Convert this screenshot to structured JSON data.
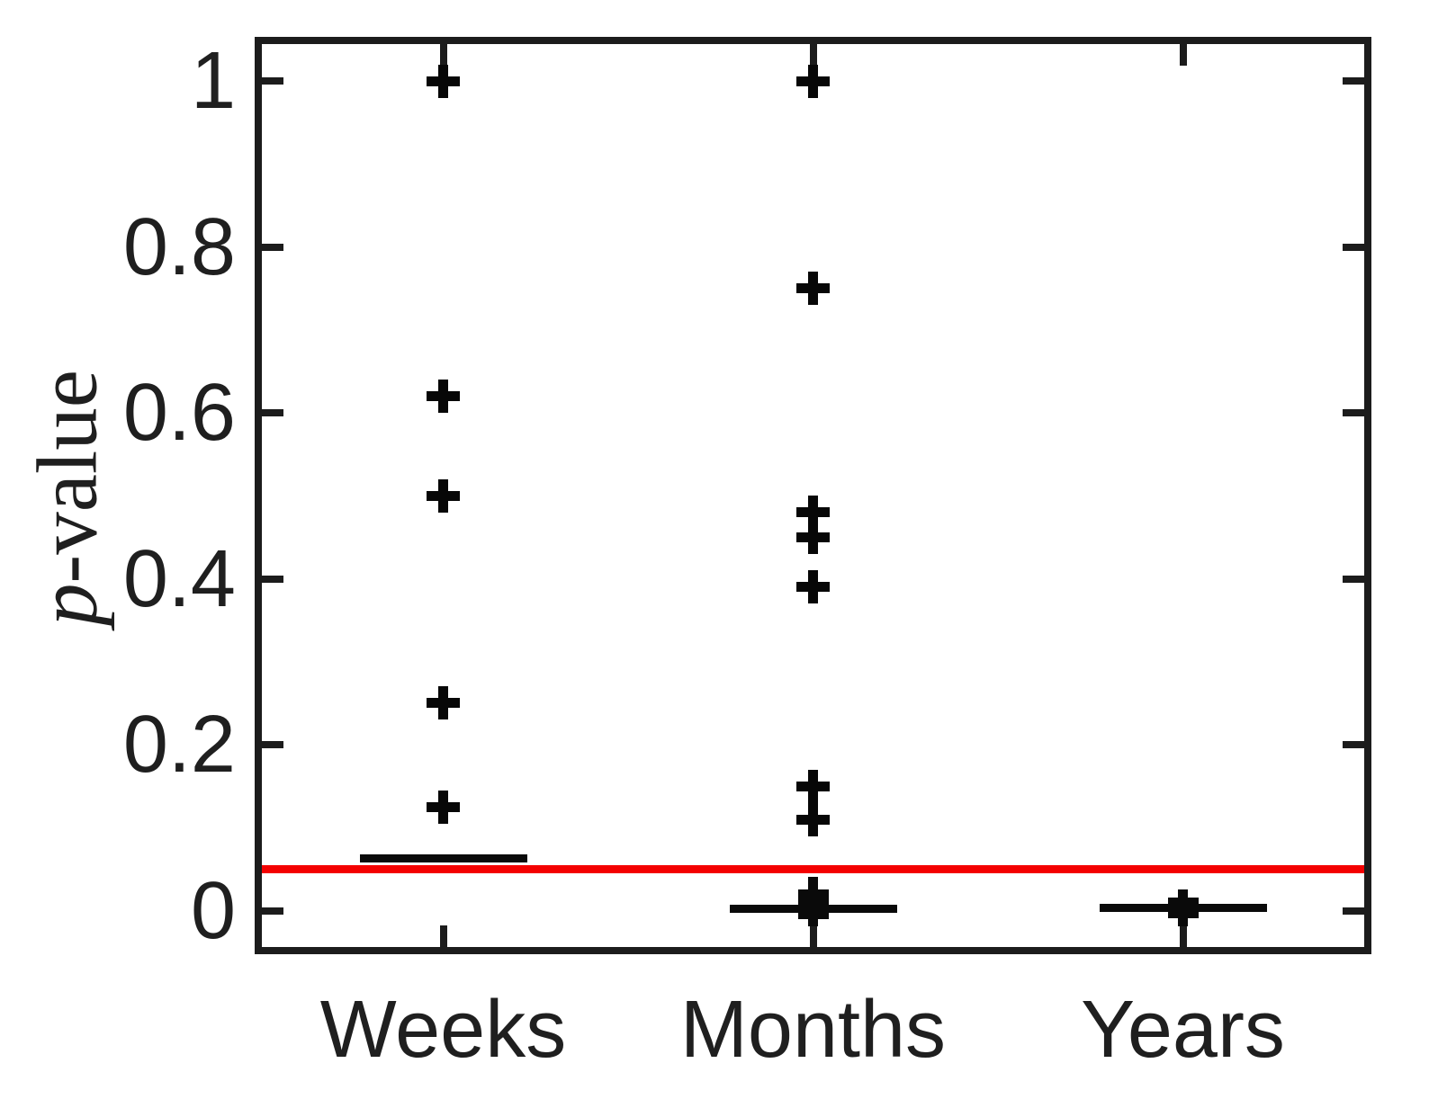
{
  "chart_data": {
    "type": "scatter",
    "subtype": "boxplot-with-outlier-markers",
    "title": "",
    "xlabel": "",
    "ylabel": "p-value",
    "ylabel_italic": "p",
    "ylabel_rest": "-value",
    "categories": [
      "Weeks",
      "Months",
      "Years"
    ],
    "ylim": [
      -0.05,
      1.05
    ],
    "grid": false,
    "legend": "none",
    "yticks": {
      "values": [
        0,
        0.2,
        0.4,
        0.6,
        0.8,
        1
      ],
      "labels": [
        "0",
        "0.2",
        "0.4",
        "0.6",
        "0.8",
        "1"
      ]
    },
    "marker": {
      "glyph": "plus",
      "color": "#000000"
    },
    "reference_line": {
      "value": 0.05,
      "color": "#f40000"
    },
    "groups": [
      {
        "label": "Weeks",
        "outliers": [
          1,
          0.62,
          0.5,
          0.25,
          0.125
        ],
        "median": 0.063,
        "box": null,
        "whisker": null
      },
      {
        "label": "Months",
        "outliers": [
          1,
          0.75,
          0.48,
          0.45,
          0.39,
          0.15,
          0.11
        ],
        "median": 0.002,
        "box": [
          0,
          0.025
        ],
        "whisker": [
          0,
          0.041
        ]
      },
      {
        "label": "Years",
        "outliers": [],
        "median": 0.003,
        "box": [
          0,
          0.016
        ],
        "whisker": [
          0,
          0.026
        ]
      }
    ]
  }
}
